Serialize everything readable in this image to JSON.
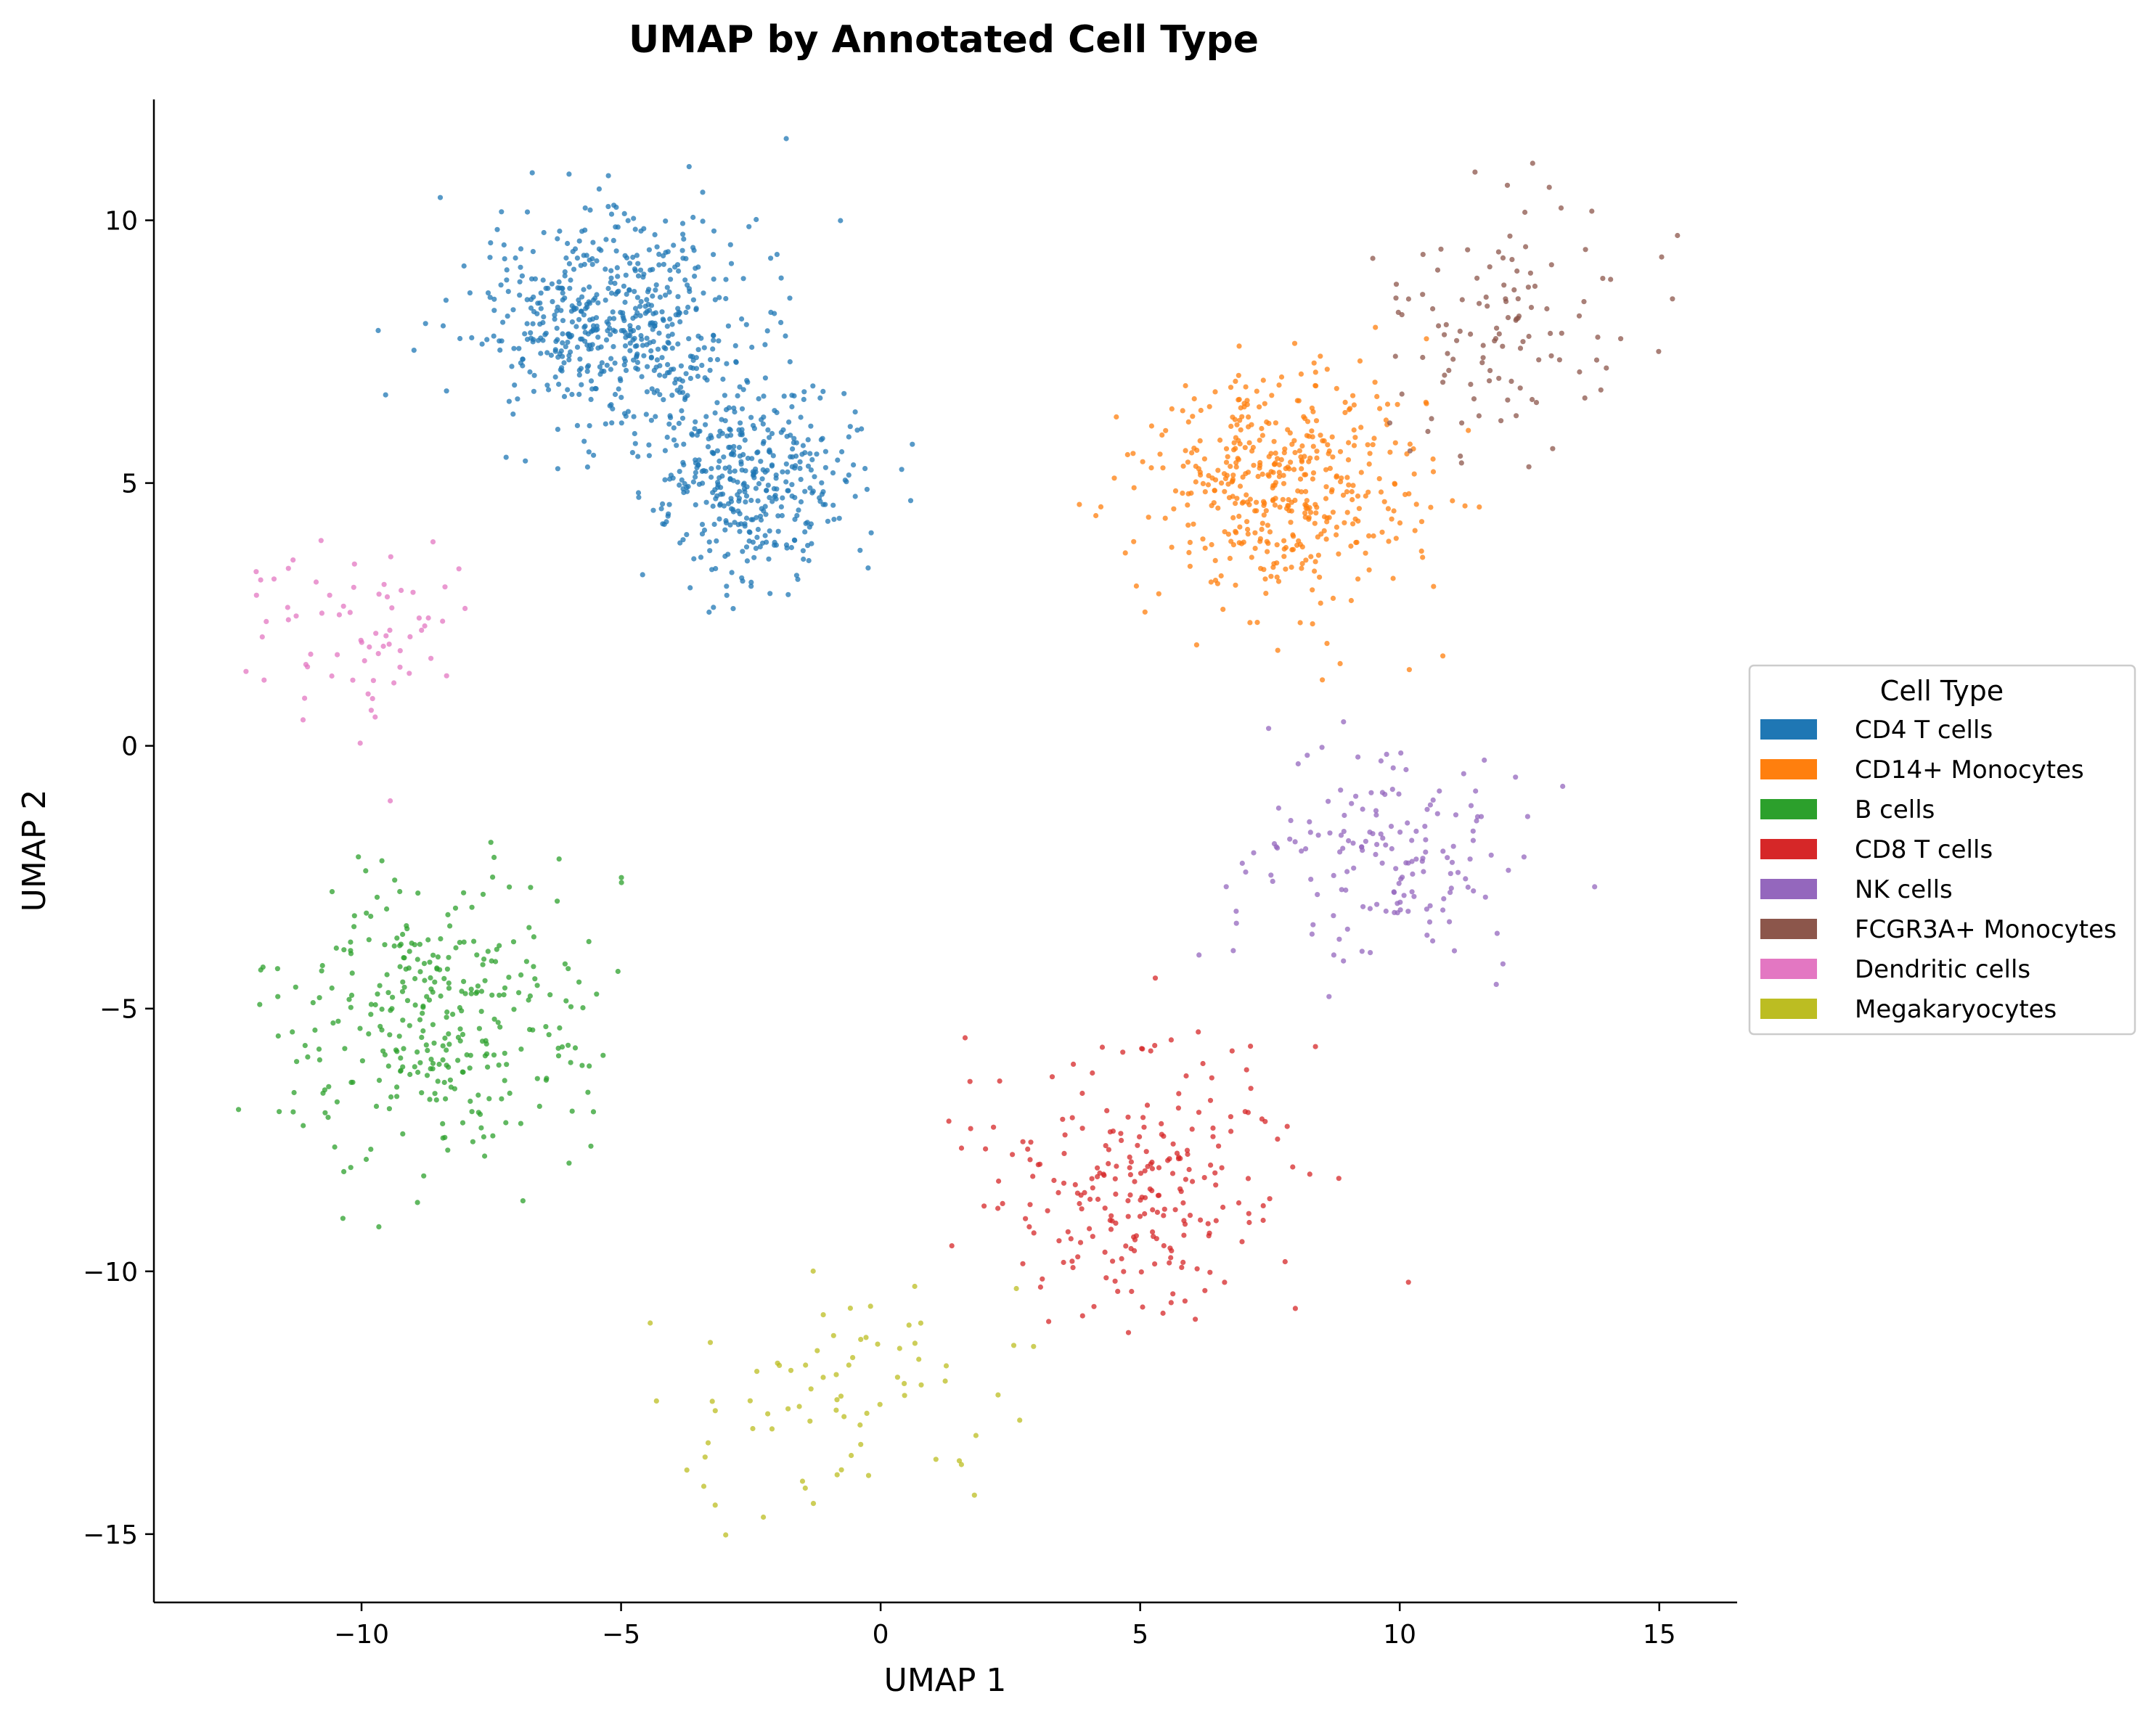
{
  "chart_data": {
    "type": "scatter",
    "title": "UMAP by Annotated Cell Type",
    "xlabel": "UMAP 1",
    "ylabel": "UMAP 2",
    "xlim": [
      -14,
      16.5
    ],
    "ylim": [
      -16.3,
      12.3
    ],
    "xticks": [
      -10,
      -5,
      0,
      5,
      10,
      15
    ],
    "yticks": [
      -15,
      -10,
      -5,
      0,
      5,
      10
    ],
    "xtick_labels": [
      "−10",
      "−5",
      "0",
      "5",
      "10",
      "15"
    ],
    "ytick_labels": [
      "−15",
      "−10",
      "−5",
      "0",
      "5",
      "10"
    ],
    "grid": false,
    "legend": {
      "title": "Cell Type",
      "placement": "outside-right"
    },
    "series": [
      {
        "name": "CD4 T cells",
        "color": "#1f77b4",
        "count": 980,
        "sub_clusters": [
          {
            "center": [
              -5.0,
              8.0
            ],
            "spread": [
              1.35,
              1.05
            ],
            "weight": 0.6
          },
          {
            "center": [
              -2.5,
              5.0
            ],
            "spread": [
              1.05,
              0.9
            ],
            "weight": 0.4
          }
        ]
      },
      {
        "name": "CD14+ Monocytes",
        "color": "#ff7f0e",
        "count": 470,
        "sub_clusters": [
          {
            "center": [
              7.8,
              5.0
            ],
            "spread": [
              1.3,
              1.1
            ],
            "weight": 1.0
          }
        ]
      },
      {
        "name": "B cells",
        "color": "#2ca02c",
        "count": 330,
        "sub_clusters": [
          {
            "center": [
              -8.5,
              -5.2
            ],
            "spread": [
              1.45,
              1.4
            ],
            "weight": 1.0
          }
        ]
      },
      {
        "name": "CD8 T cells",
        "color": "#d62728",
        "count": 240,
        "sub_clusters": [
          {
            "center": [
              5.0,
              -8.2
            ],
            "spread": [
              1.5,
              1.3
            ],
            "weight": 1.0
          }
        ]
      },
      {
        "name": "NK cells",
        "color": "#9467bd",
        "count": 165,
        "sub_clusters": [
          {
            "center": [
              10.0,
              -2.2
            ],
            "spread": [
              1.3,
              1.1
            ],
            "weight": 1.0
          }
        ]
      },
      {
        "name": "FCGR3A+ Monocytes",
        "color": "#8c564b",
        "count": 115,
        "sub_clusters": [
          {
            "center": [
              12.0,
              8.0
            ],
            "spread": [
              1.2,
              1.15
            ],
            "weight": 1.0
          }
        ]
      },
      {
        "name": "Dendritic cells",
        "color": "#e377c2",
        "count": 70,
        "sub_clusters": [
          {
            "center": [
              -10.0,
              2.0
            ],
            "spread": [
              0.95,
              1.05
            ],
            "weight": 1.0
          }
        ]
      },
      {
        "name": "Megakaryocytes",
        "color": "#bcbd22",
        "count": 75,
        "sub_clusters": [
          {
            "center": [
              -0.5,
              -12.2
            ],
            "spread": [
              1.55,
              1.2
            ],
            "weight": 1.0
          }
        ]
      }
    ]
  }
}
